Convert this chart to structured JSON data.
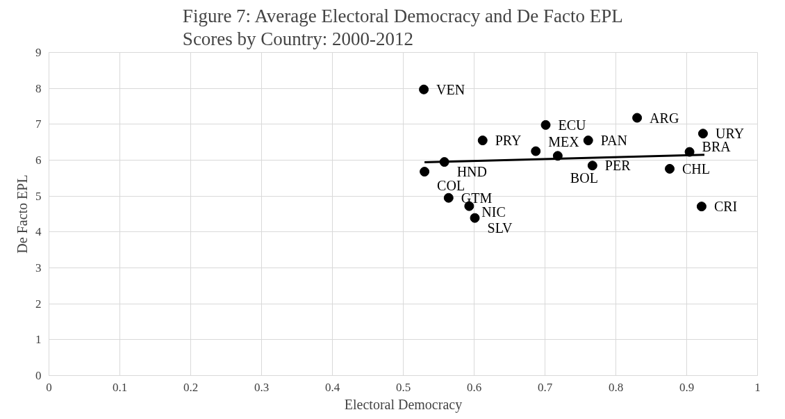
{
  "chart_data": {
    "type": "scatter",
    "title": "Figure 7: Average Electoral Democracy and De Facto EPL\nScores by Country: 2000-2012",
    "xlabel": "Electoral Democracy",
    "ylabel": "De Facto EPL",
    "xlim": [
      0,
      1
    ],
    "xticks": [
      0,
      0.1,
      0.2,
      0.3,
      0.4,
      0.5,
      0.6,
      0.7,
      0.8,
      0.9,
      1
    ],
    "ylim": [
      0,
      9
    ],
    "yticks": [
      0,
      1,
      2,
      3,
      4,
      5,
      6,
      7,
      8,
      9
    ],
    "grid": true,
    "series": [
      {
        "marker": "circle",
        "color": "#000000",
        "x": [
          0.529,
          0.701,
          0.612,
          0.687,
          0.558,
          0.53,
          0.564,
          0.593,
          0.601,
          0.718,
          0.761,
          0.767,
          0.83,
          0.923,
          0.904,
          0.876,
          0.921
        ],
        "values": [
          7.97,
          6.98,
          6.55,
          6.25,
          5.95,
          5.68,
          4.95,
          4.72,
          4.39,
          6.12,
          6.55,
          5.85,
          7.18,
          6.74,
          6.23,
          5.76,
          4.71
        ]
      },
      {
        "type": "line",
        "color": "#000000",
        "x": [
          0.53,
          0.925
        ],
        "values": [
          5.94,
          6.15
        ]
      }
    ],
    "annotations": [
      {
        "text": "VEN",
        "x": 0.529,
        "y": 7.97
      },
      {
        "text": "ECU",
        "x": 0.701,
        "y": 6.98
      },
      {
        "text": "PRY",
        "x": 0.612,
        "y": 6.55
      },
      {
        "text": "MEX",
        "x": 0.687,
        "y": 6.25
      },
      {
        "text": "HND",
        "x": 0.558,
        "y": 5.95
      },
      {
        "text": "COL",
        "x": 0.53,
        "y": 5.68
      },
      {
        "text": "GTM",
        "x": 0.564,
        "y": 4.95
      },
      {
        "text": "NIC",
        "x": 0.593,
        "y": 4.72
      },
      {
        "text": "SLV",
        "x": 0.601,
        "y": 4.39
      },
      {
        "text": "BOL",
        "x": 0.718,
        "y": 6.12
      },
      {
        "text": "PAN",
        "x": 0.761,
        "y": 6.55
      },
      {
        "text": "PER",
        "x": 0.767,
        "y": 5.85
      },
      {
        "text": "ARG",
        "x": 0.83,
        "y": 7.18
      },
      {
        "text": "URY",
        "x": 0.923,
        "y": 6.74
      },
      {
        "text": "BRA",
        "x": 0.904,
        "y": 6.23
      },
      {
        "text": "CHL",
        "x": 0.876,
        "y": 5.76
      },
      {
        "text": "CRI",
        "x": 0.921,
        "y": 4.71
      }
    ]
  }
}
